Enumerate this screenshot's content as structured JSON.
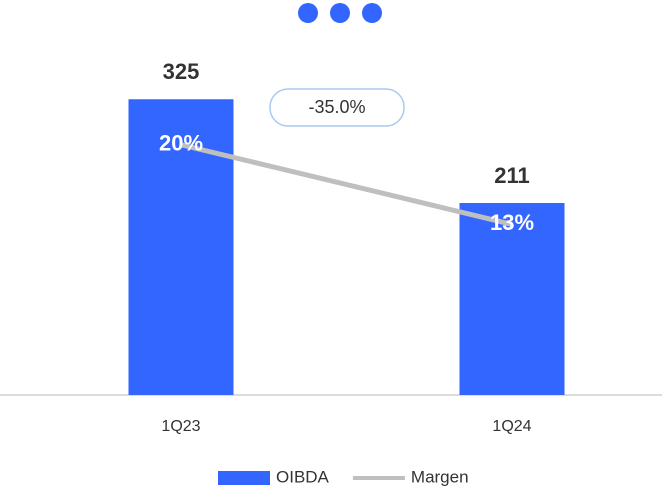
{
  "chart_data": {
    "type": "bar",
    "categories": [
      "1Q23",
      "1Q24"
    ],
    "series": [
      {
        "name": "OIBDA",
        "type": "bar",
        "color": "#3366ff",
        "values": [
          325,
          211
        ]
      },
      {
        "name": "Margen",
        "type": "line",
        "axis": "y2",
        "color": "#bfbfbf",
        "values": [
          20,
          13
        ],
        "value_labels": [
          "20%",
          "13%"
        ]
      }
    ],
    "ylim": [
      0,
      400
    ],
    "y2lim": [
      -2,
      30
    ],
    "annotation": "-35.0%",
    "legend": "bottom"
  }
}
